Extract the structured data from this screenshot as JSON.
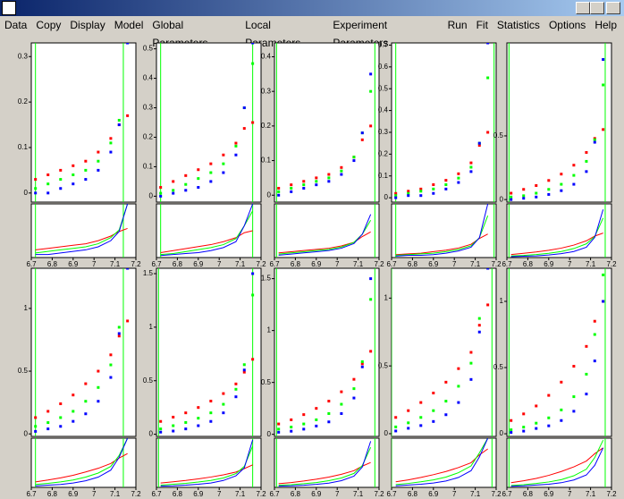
{
  "menu": [
    "Data",
    "Copy",
    "Display",
    "Model",
    "Global Parameters",
    "Local Parameters",
    "Experiment Parameters",
    "Run",
    "Fit",
    "Statistics",
    "Options",
    "Help"
  ],
  "chart_data": [
    {
      "type": "scatter",
      "x": [
        6.72,
        6.78,
        6.84,
        6.9,
        6.96,
        7.02,
        7.08,
        7.12,
        7.16
      ],
      "xlim": [
        6.7,
        7.2
      ],
      "xticks": [
        6.7,
        6.8,
        6.9,
        7,
        7.1,
        7.2
      ],
      "ylim": [
        -0.02,
        0.33
      ],
      "yticks": [
        0,
        0.1,
        0.2,
        0.3
      ],
      "vlines": {
        "color": "#00ff00",
        "x": [
          6.72,
          7.14
        ]
      },
      "series": [
        {
          "color": "#ff0000",
          "values": [
            0.03,
            0.04,
            0.05,
            0.06,
            0.07,
            0.09,
            0.12,
            0.15,
            0.17
          ]
        },
        {
          "color": "#00ff00",
          "values": [
            0.01,
            0.02,
            0.03,
            0.04,
            0.05,
            0.07,
            0.11,
            0.16,
            0.33
          ]
        },
        {
          "color": "#0000ff",
          "values": [
            0,
            0,
            0.01,
            0.02,
            0.03,
            0.05,
            0.09,
            0.15,
            0.33
          ]
        }
      ]
    },
    {
      "type": "scatter",
      "x": [
        6.72,
        6.78,
        6.84,
        6.9,
        6.96,
        7.02,
        7.08,
        7.12,
        7.16
      ],
      "xlim": [
        6.7,
        7.2
      ],
      "xticks": [
        6.7,
        6.8,
        6.9,
        7,
        7.1,
        7.2
      ],
      "ylim": [
        -0.02,
        0.52
      ],
      "yticks": [
        0,
        0.1,
        0.2,
        0.3,
        0.4,
        0.5
      ],
      "vlines": {
        "color": "#00ff00",
        "x": [
          6.72,
          7.16
        ]
      },
      "series": [
        {
          "color": "#ff0000",
          "values": [
            0.03,
            0.05,
            0.07,
            0.09,
            0.11,
            0.14,
            0.18,
            0.23,
            0.25
          ]
        },
        {
          "color": "#00ff00",
          "values": [
            0.01,
            0.02,
            0.04,
            0.06,
            0.08,
            0.11,
            0.17,
            0.3,
            0.45
          ]
        },
        {
          "color": "#0000ff",
          "values": [
            0,
            0.01,
            0.02,
            0.03,
            0.05,
            0.08,
            0.14,
            0.3,
            0.52
          ]
        }
      ]
    },
    {
      "type": "scatter",
      "x": [
        6.72,
        6.78,
        6.84,
        6.9,
        6.96,
        7.02,
        7.08,
        7.12,
        7.16
      ],
      "xlim": [
        6.7,
        7.2
      ],
      "xticks": [
        6.7,
        6.8,
        6.9,
        7,
        7.1,
        7.2
      ],
      "ylim": [
        -0.02,
        0.44
      ],
      "yticks": [
        0,
        0.1,
        0.2,
        0.3,
        0.4
      ],
      "vlines": {
        "color": "#00ff00",
        "x": [
          6.71,
          7.18
        ]
      },
      "series": [
        {
          "color": "#ff0000",
          "values": [
            0.02,
            0.03,
            0.04,
            0.05,
            0.06,
            0.08,
            0.11,
            0.16,
            0.2
          ]
        },
        {
          "color": "#00ff00",
          "values": [
            0.01,
            0.02,
            0.03,
            0.04,
            0.05,
            0.07,
            0.11,
            0.18,
            0.3
          ]
        },
        {
          "color": "#0000ff",
          "values": [
            0,
            0.01,
            0.02,
            0.03,
            0.04,
            0.06,
            0.1,
            0.18,
            0.35
          ]
        }
      ]
    },
    {
      "type": "scatter",
      "x": [
        6.72,
        6.78,
        6.84,
        6.9,
        6.96,
        7.02,
        7.08,
        7.12,
        7.16
      ],
      "xlim": [
        6.7,
        7.2
      ],
      "xticks": [
        6.7,
        6.8,
        6.9,
        7,
        7.1,
        7.2
      ],
      "ylim": [
        -0.02,
        0.71
      ],
      "yticks": [
        0,
        0.1,
        0.2,
        0.3,
        0.4,
        0.5,
        0.6,
        0.7
      ],
      "vlines": {
        "color": "#00ff00",
        "x": [
          6.72,
          7.19
        ]
      },
      "series": [
        {
          "color": "#ff0000",
          "values": [
            0.02,
            0.03,
            0.04,
            0.06,
            0.08,
            0.11,
            0.16,
            0.24,
            0.3
          ]
        },
        {
          "color": "#00ff00",
          "values": [
            0.01,
            0.02,
            0.03,
            0.04,
            0.06,
            0.09,
            0.14,
            0.25,
            0.55
          ]
        },
        {
          "color": "#0000ff",
          "values": [
            0,
            0.01,
            0.01,
            0.02,
            0.04,
            0.07,
            0.12,
            0.25,
            0.71
          ]
        }
      ]
    },
    {
      "type": "scatter",
      "x": [
        6.72,
        6.78,
        6.84,
        6.9,
        6.96,
        7.02,
        7.08,
        7.12,
        7.16
      ],
      "xlim": [
        6.7,
        7.2
      ],
      "xticks": [
        6.7,
        6.8,
        6.9,
        7,
        7.1,
        7.2
      ],
      "ylim": [
        -0.02,
        1.23
      ],
      "yticks": [
        0,
        0.5
      ],
      "vlines": {
        "color": "#00ff00",
        "x": [
          6.71,
          7.17
        ]
      },
      "series": [
        {
          "color": "#ff0000",
          "values": [
            0.05,
            0.08,
            0.11,
            0.15,
            0.2,
            0.27,
            0.37,
            0.48,
            0.55
          ]
        },
        {
          "color": "#00ff00",
          "values": [
            0.02,
            0.03,
            0.05,
            0.08,
            0.12,
            0.19,
            0.3,
            0.47,
            0.9
          ]
        },
        {
          "color": "#0000ff",
          "values": [
            0,
            0.01,
            0.02,
            0.04,
            0.07,
            0.12,
            0.22,
            0.45,
            1.1
          ]
        }
      ]
    },
    {
      "type": "scatter",
      "x": [
        6.72,
        6.78,
        6.84,
        6.9,
        6.96,
        7.02,
        7.08,
        7.12,
        7.16
      ],
      "xlim": [
        6.7,
        7.2
      ],
      "xticks": [
        6.7,
        6.8,
        6.9,
        7,
        7.1,
        7.2
      ],
      "ylim": [
        -0.02,
        1.32
      ],
      "yticks": [
        0,
        0.5,
        1
      ],
      "vlines": {
        "color": "#00ff00",
        "x": [
          6.72,
          7.14
        ]
      },
      "series": [
        {
          "color": "#ff0000",
          "values": [
            0.13,
            0.18,
            0.24,
            0.31,
            0.4,
            0.5,
            0.63,
            0.78,
            0.9
          ]
        },
        {
          "color": "#00ff00",
          "values": [
            0.06,
            0.09,
            0.13,
            0.18,
            0.26,
            0.37,
            0.55,
            0.85,
            1.32
          ]
        },
        {
          "color": "#0000ff",
          "values": [
            0.02,
            0.04,
            0.06,
            0.1,
            0.16,
            0.26,
            0.45,
            0.8,
            1.32
          ]
        }
      ]
    },
    {
      "type": "scatter",
      "x": [
        6.72,
        6.78,
        6.84,
        6.9,
        6.96,
        7.02,
        7.08,
        7.12,
        7.16
      ],
      "xlim": [
        6.7,
        7.2
      ],
      "xticks": [
        6.7,
        6.8,
        6.9,
        7,
        7.1,
        7.2
      ],
      "ylim": [
        -0.02,
        1.55
      ],
      "yticks": [
        0,
        0.5,
        1,
        1.5
      ],
      "vlines": {
        "color": "#00ff00",
        "x": [
          6.71,
          7.16
        ]
      },
      "series": [
        {
          "color": "#ff0000",
          "values": [
            0.12,
            0.16,
            0.2,
            0.25,
            0.31,
            0.38,
            0.47,
            0.58,
            0.7
          ]
        },
        {
          "color": "#00ff00",
          "values": [
            0.05,
            0.08,
            0.11,
            0.15,
            0.2,
            0.28,
            0.42,
            0.65,
            1.3
          ]
        },
        {
          "color": "#0000ff",
          "values": [
            0.02,
            0.03,
            0.05,
            0.08,
            0.12,
            0.2,
            0.35,
            0.6,
            1.5
          ]
        }
      ]
    },
    {
      "type": "scatter",
      "x": [
        6.72,
        6.78,
        6.84,
        6.9,
        6.96,
        7.02,
        7.08,
        7.12,
        7.16
      ],
      "xlim": [
        6.7,
        7.2
      ],
      "xticks": [
        6.7,
        6.8,
        6.9,
        7,
        7.1,
        7.2
      ],
      "ylim": [
        -0.02,
        1.6
      ],
      "yticks": [
        0,
        0.5,
        1,
        1.5
      ],
      "vlines": {
        "color": "#00ff00",
        "x": [
          6.71,
          7.18
        ]
      },
      "series": [
        {
          "color": "#ff0000",
          "values": [
            0.1,
            0.14,
            0.19,
            0.25,
            0.32,
            0.41,
            0.53,
            0.68,
            0.8
          ]
        },
        {
          "color": "#00ff00",
          "values": [
            0.05,
            0.07,
            0.1,
            0.14,
            0.2,
            0.29,
            0.44,
            0.7,
            1.3
          ]
        },
        {
          "color": "#0000ff",
          "values": [
            0.02,
            0.03,
            0.05,
            0.08,
            0.12,
            0.2,
            0.35,
            0.65,
            1.5
          ]
        }
      ]
    },
    {
      "type": "scatter",
      "x": [
        6.72,
        6.78,
        6.84,
        6.9,
        6.96,
        7.02,
        7.08,
        7.12,
        7.16
      ],
      "xlim": [
        6.7,
        7.2
      ],
      "xticks": [
        6.7,
        6.8,
        6.9,
        7,
        7.1,
        7.2
      ],
      "ylim": [
        -0.02,
        1.22
      ],
      "yticks": [
        0,
        0.5,
        1
      ],
      "vlines": {
        "color": "#00ff00",
        "x": [
          6.7,
          7.18
        ]
      },
      "series": [
        {
          "color": "#ff0000",
          "values": [
            0.12,
            0.17,
            0.23,
            0.3,
            0.38,
            0.48,
            0.6,
            0.8,
            0.95
          ]
        },
        {
          "color": "#00ff00",
          "values": [
            0.05,
            0.08,
            0.12,
            0.17,
            0.24,
            0.35,
            0.52,
            0.85,
            1.22
          ]
        },
        {
          "color": "#0000ff",
          "values": [
            0.02,
            0.04,
            0.06,
            0.09,
            0.14,
            0.23,
            0.4,
            0.75,
            1.22
          ]
        }
      ]
    },
    {
      "type": "scatter",
      "x": [
        6.72,
        6.78,
        6.84,
        6.9,
        6.96,
        7.02,
        7.08,
        7.12,
        7.16
      ],
      "xlim": [
        6.7,
        7.2
      ],
      "xticks": [
        6.7,
        6.8,
        6.9,
        7,
        7.1,
        7.2
      ],
      "ylim": [
        -0.02,
        1.25
      ],
      "yticks": [
        0,
        0.5,
        1
      ],
      "vlines": {
        "color": "#00ff00",
        "x": [
          6.71,
          7.17
        ]
      },
      "series": [
        {
          "color": "#ff0000",
          "values": [
            0.1,
            0.15,
            0.21,
            0.29,
            0.39,
            0.51,
            0.66,
            0.85,
            1
          ]
        },
        {
          "color": "#00ff00",
          "values": [
            0.03,
            0.05,
            0.08,
            0.12,
            0.18,
            0.28,
            0.45,
            0.75,
            1.2
          ]
        },
        {
          "color": "#0000ff",
          "values": [
            0.01,
            0.02,
            0.04,
            0.06,
            0.1,
            0.17,
            0.3,
            0.55,
            1
          ]
        }
      ]
    }
  ]
}
